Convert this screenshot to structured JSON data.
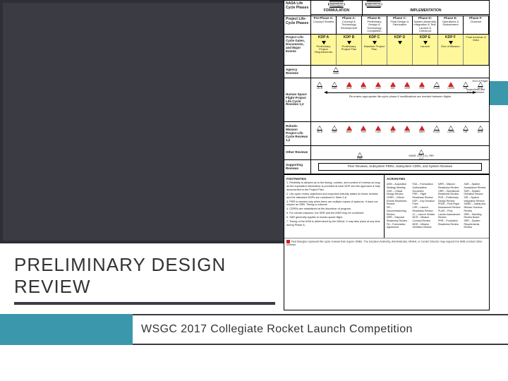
{
  "colors": {
    "dark_panel": "#3b3b44",
    "dark_panel_border": "#2e2e36",
    "accent": "#3a97ac",
    "yellow_band": "#fff89a",
    "red_marker": "#d92020",
    "text": "#333333"
  },
  "title": "PRELIMINARY DESIGN REVIEW",
  "subtitle": "WSGC 2017 Collegiate Rocket Launch Competition",
  "diagram": {
    "header": {
      "row_label": "NASA Life Cycle Phases",
      "approval_formulation": "Approval for Formulation",
      "approval_implementation": "Approval for Implementation",
      "formulation": "FORMULATION",
      "implementation": "IMPLEMENTATION"
    },
    "phases": {
      "row_label": "Project Life-Cycle Phases",
      "cells": [
        {
          "name": "Pre-Phase A:",
          "desc": "Concept Studies"
        },
        {
          "name": "Phase A:",
          "desc": "Concept & Technology Development"
        },
        {
          "name": "Phase B:",
          "desc": "Preliminary Design & Technology Completion"
        },
        {
          "name": "Phase C:",
          "desc": "Final Design & Fabrication"
        },
        {
          "name": "Phase D:",
          "desc": "System Assembly, Integration & Test, Launch & Checkout"
        },
        {
          "name": "Phase E:",
          "desc": "Operations & Sustainment"
        },
        {
          "name": "Phase F:",
          "desc": "Closeout"
        }
      ]
    },
    "gates": {
      "row_label": "Project Life-Cycle Gates, Documents, and Major Events",
      "kdps": [
        "KDP A",
        "KDP B",
        "KDP C",
        "KDP D",
        "KDP E",
        "KDP F",
        ""
      ],
      "events": [
        "Preliminary Project Requirements",
        "Preliminary Project Plan",
        "Baseline Project Plan",
        "Launch",
        "",
        "End of Mission",
        "Final Archival of Data"
      ]
    },
    "agency_row": {
      "label": "Agency Reviews",
      "item": "ASM"
    },
    "human_row": {
      "label": "Human Space Flight Project Life Cycle Reviews 1,2",
      "items": [
        "MCR",
        "SRR",
        "SDR",
        "PDR",
        "CDR",
        "SIR",
        "ORR",
        "FRR",
        "PLAR",
        "CERR",
        "DR",
        "DRR"
      ],
      "red_idx": [
        2,
        3,
        4,
        5,
        6,
        7,
        9
      ],
      "note1": "Inspections and Refurbishment",
      "note2": "Re-enters appropriate life-cycle phase if modifications are needed between flights",
      "eof": "End of Flight"
    },
    "robotic_row": {
      "label": "Robotic Mission Project Life Cycle Reviews 1,2",
      "items": [
        "MCR",
        "SRR",
        "MDR",
        "PDR",
        "CDR",
        "SIR",
        "ORR",
        "MRR",
        "PLAR",
        "CERR",
        "DR",
        "DRR"
      ],
      "red_idx": [
        2,
        3,
        4,
        5,
        6,
        7
      ]
    },
    "other_row": {
      "label": "Other Reviews",
      "items": [
        "PRR",
        "SMSR, LRR (LV), FRR (LV)"
      ]
    },
    "supporting_row": {
      "label": "Supporting Reviews",
      "box": "Peer Reviews, Subsystem PDRs, Subsystem CDRs, and System Reviews"
    },
    "footnotes": {
      "heading": "FOOTNOTES",
      "items": [
        "1. Flexibility is allowed as to the timing, number, and content of reviews as long as the equivalent information is provided at each KDP and the approach is fully documented in the Project Plan.",
        "2. Life-cycle review objectives and expected maturity states for these reviews and the attendant KDPs are contained in Table 2-6.",
        "3. PRR is needed only when there are multiple copies of systems. It does not require an SRB. Timing is notional.",
        "4. CERRs are established at the discretion of program.",
        "5. For robotic missions, the SRR and the MDR may be combined.",
        "6. SAR generally applies to human space flight.",
        "7. Timing of the ASM is determined by the MDAA. It may take place at any time during Phase A."
      ]
    },
    "acronyms": {
      "heading": "ACRONYMS",
      "items": [
        "ASM – Acquisition Strategy Meeting",
        "CDR – Critical Design Review",
        "CERR – Critical Events Readiness Review",
        "DR – Decommissioning Review",
        "DRR – Disposal Readiness Review",
        "FA – Formulation Agreement",
        "FAD – Formulation Authorization Document",
        "FRR – Flight Readiness Review",
        "KDP – Key Decision Point",
        "LRR – Launch Readiness Review",
        "LV – Launch Vehicle",
        "MCR – Mission Concept Review",
        "MDR – Mission Definition Review",
        "MRR – Mission Readiness Review",
        "ORR – Operational Readiness Review",
        "PDR – Preliminary Design Review",
        "PFAR – Post-Flight Assessment Review",
        "PLAR – Post-Launch Assessment Review",
        "PRR – Production Readiness Review",
        "SAR – System Acceptance Review",
        "SDR – System Definition Review",
        "SIR – System Integration Review",
        "SMSR – Safety and Mission Success Review",
        "SRB – Standing Review Board",
        "SRR – System Requirements Review"
      ]
    },
    "red_note": "Red triangles represent life-cycle reviews that require SRBs. The Decision Authority, Administrator, MDAA, or Center Director may request the SRB conduct other reviews."
  }
}
